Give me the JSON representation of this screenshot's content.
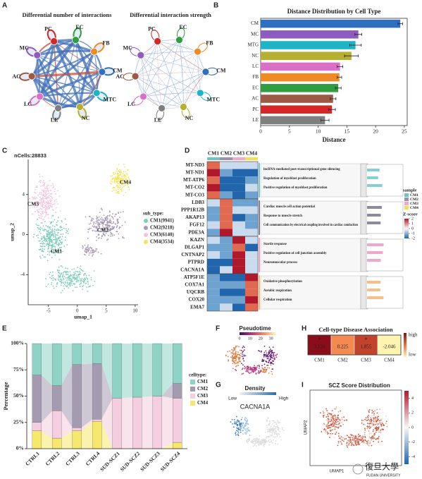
{
  "panel_labels": [
    "A",
    "B",
    "C",
    "D",
    "E",
    "F",
    "G",
    "H",
    "I"
  ],
  "network": {
    "titles": [
      "Differential number of interactions",
      "Differential interaction strength"
    ],
    "nodes": [
      {
        "label": "PC",
        "color": "#d62728"
      },
      {
        "label": "EC",
        "color": "#2e9e3e"
      },
      {
        "label": "FB",
        "color": "#f08a24"
      },
      {
        "label": "CM",
        "color": "#2f6fbf"
      },
      {
        "label": "MTC",
        "color": "#1fb3c6"
      },
      {
        "label": "NC",
        "color": "#b5b030"
      },
      {
        "label": "LE",
        "color": "#7f7f7f"
      },
      {
        "label": "LC",
        "color": "#d96fc6"
      },
      {
        "label": "AC",
        "color": "#9c5a44"
      },
      {
        "label": "MC",
        "color": "#8e5cc0"
      }
    ]
  },
  "chart_data": [
    {
      "type": "hbar",
      "title": "Distance Distribution by Cell Type",
      "x_label": "Distance",
      "categories": [
        "CM",
        "MC",
        "MTG",
        "NC",
        "LC",
        "FB",
        "EC",
        "AC",
        "PC",
        "LE"
      ],
      "values": [
        24.3,
        17.0,
        16.5,
        15.8,
        13.8,
        13.7,
        13.5,
        12.6,
        12.4,
        11.2
      ],
      "errors": [
        0.4,
        0.6,
        1.0,
        1.2,
        0.5,
        0.4,
        0.5,
        0.5,
        0.6,
        0.7
      ],
      "colors": [
        "#2f6fbf",
        "#8e5cc0",
        "#1fb3c6",
        "#b5b030",
        "#d96fc6",
        "#f08a24",
        "#2e9e3e",
        "#9c5a44",
        "#d62728",
        "#7f7f7f"
      ],
      "xlim": [
        0,
        25.5
      ],
      "xticks": [
        0,
        5,
        10,
        15,
        20,
        25
      ]
    },
    {
      "type": "stacked_bar",
      "y_label": "Percentage",
      "legend_title": "celltype:",
      "categories": [
        "CTRL1",
        "CTRL2",
        "CTRL3",
        "CTRL4",
        "SUD-SCZ1",
        "SUD-SCZ2",
        "SUD-SCZ3",
        "SUD-SCZ4"
      ],
      "series": [
        {
          "name": "CM1",
          "color": "#8fd3c6",
          "values": [
            30,
            40,
            20,
            19,
            52,
            51,
            50,
            38
          ]
        },
        {
          "name": "CM2",
          "color": "#a59bb0",
          "values": [
            45,
            24,
            60,
            53,
            0,
            0,
            0,
            14
          ]
        },
        {
          "name": "CM3",
          "color": "#f4cde0",
          "values": [
            8,
            26,
            3,
            2,
            48,
            49,
            50,
            42
          ]
        },
        {
          "name": "CM4",
          "color": "#f5e86a",
          "values": [
            17,
            10,
            17,
            26,
            0,
            0,
            0,
            6
          ]
        }
      ],
      "ylim": [
        0,
        100
      ],
      "yticks": [
        {
          "value": 0,
          "label": "0%"
        },
        {
          "value": 25,
          "label": "25%"
        },
        {
          "value": 50,
          "label": "50%"
        },
        {
          "value": 75,
          "label": "75%"
        },
        {
          "value": 100,
          "label": "100%"
        }
      ]
    },
    {
      "type": "heatmap",
      "title": "Cell-type Disease Association",
      "categories": [
        "CM1",
        "CM2",
        "CM3",
        "CM4"
      ],
      "values": [
        3.12,
        0.225,
        1.855,
        -2.046
      ],
      "value_labels": [
        "3.120",
        "0.225",
        "1.855",
        "-2.046"
      ],
      "annotations": [
        "*",
        null,
        "*",
        null
      ],
      "legend_labels": [
        "high",
        "low"
      ]
    }
  ],
  "umap": {
    "title": "nCells:28833",
    "x_label": "umap_1",
    "y_label": "umap_2",
    "xlim": [
      -8.5,
      10.5
    ],
    "ylim": [
      -7,
      7.5
    ],
    "xticks": [
      -5,
      0,
      5,
      10
    ],
    "yticks": [
      -4,
      0,
      4
    ],
    "legend_title": "sub_type:",
    "clusters": [
      {
        "name": "CM1",
        "legend": "CM1(9941)",
        "color": "#7fcdbb"
      },
      {
        "name": "CM2",
        "legend": "CM2(9218)",
        "color": "#a99bb5"
      },
      {
        "name": "CM3",
        "legend": "CM3(6140)",
        "color": "#f2c4dc"
      },
      {
        "name": "CM4",
        "legend": "CM4(3534)",
        "color": "#f5e55c"
      }
    ]
  },
  "gene_heatmap": {
    "columns": [
      "CM1",
      "CM2",
      "CM3",
      "CM4"
    ],
    "column_colors": [
      "#6cc5c0",
      "#9d8fb0",
      "#f0a9c8",
      "#f5df4d"
    ],
    "groups": [
      {
        "color": "#1fa5b5",
        "genes": [
          "MT-ND3",
          "MT-ND1",
          "MT-ATP6",
          "MT-CO2",
          "MT-CO3"
        ],
        "terms": [
          "lncRNA-mediated post-transcriptional gene silencing",
          "Regulation of myoblast proliferation",
          "Positive regulation of myoblast proliferation"
        ]
      },
      {
        "color": "#2b2b4a",
        "genes": [
          "LDB3",
          "PPP1R12B",
          "AKAP13",
          "FGF12",
          "PDE3A"
        ],
        "terms": [
          "Cardiac muscle cell action potential",
          "Response to muscle stretch",
          "Cell communication by electrical coupling involved in cardiac conduction"
        ]
      },
      {
        "color": "#e0609e",
        "genes": [
          "KAZN",
          "DLGAP1",
          "CNTNAP2",
          "PTPRD",
          "CACNA1A"
        ],
        "terms": [
          "Startle response",
          "Positive regulation of cell junction assembly",
          "Neuromuscular process"
        ]
      },
      {
        "color": "#f08a24",
        "genes": [
          "ATP5F1E",
          "COX7A1",
          "UQCRB",
          "COX20",
          "EMA7"
        ],
        "terms": [
          "Oxidative phosphorylation",
          "Aerobic respiration",
          "Cellular respiration"
        ]
      }
    ],
    "sample_title": "sample",
    "sample_items": [
      "CM1",
      "CM2",
      "CM3",
      "CM4"
    ],
    "zscore_title": "Z-score",
    "zscore_lim": [
      -2,
      2
    ],
    "zscore_ticks": [
      2,
      1,
      0,
      -1,
      -2
    ]
  },
  "pseudotime": {
    "title": "Pseudotime",
    "lim": [
      0,
      35
    ],
    "ticks": [
      0,
      10,
      20,
      30
    ]
  },
  "density": {
    "title": "Density",
    "low": "Low",
    "high": "High",
    "gene": "CACNA1A"
  },
  "scz": {
    "title": "SCZ Score Distribution",
    "x_label": "UMAP1",
    "y_label": "UMAP2",
    "lim": [
      -5,
      5
    ],
    "ticks": [
      4,
      2,
      0,
      -2,
      -4
    ]
  },
  "watermark": {
    "name": "復旦大學",
    "name_en": "FUDAN UNIVERSITY"
  }
}
